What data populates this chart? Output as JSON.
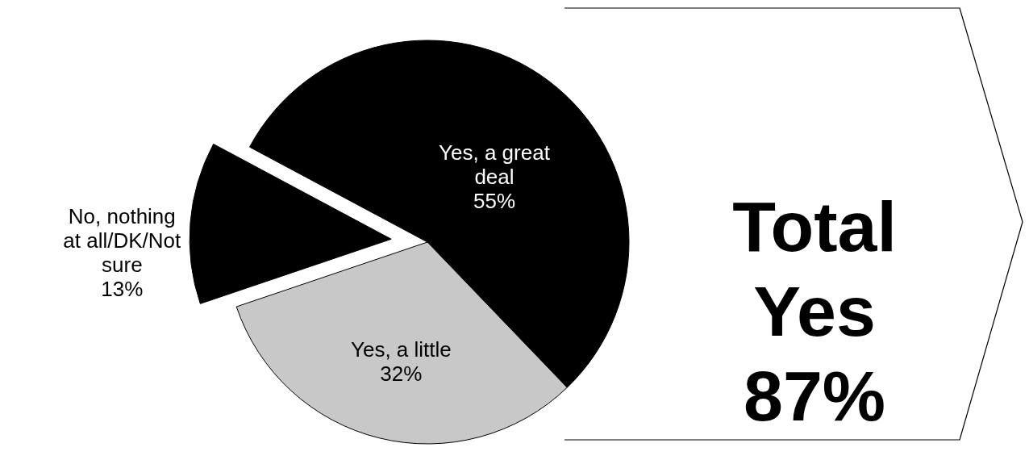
{
  "chart_data": {
    "type": "pie",
    "categories": [
      "Yes, a great deal",
      "Yes, a little",
      "No, nothing at all/DK/Not sure"
    ],
    "values": [
      55,
      32,
      13
    ],
    "colors": [
      "#000000",
      "#c8c8c8",
      "#000000"
    ],
    "value_labels": [
      "55%",
      "32%",
      "13%"
    ],
    "annotations": [
      "Total Yes 87%"
    ]
  }
}
